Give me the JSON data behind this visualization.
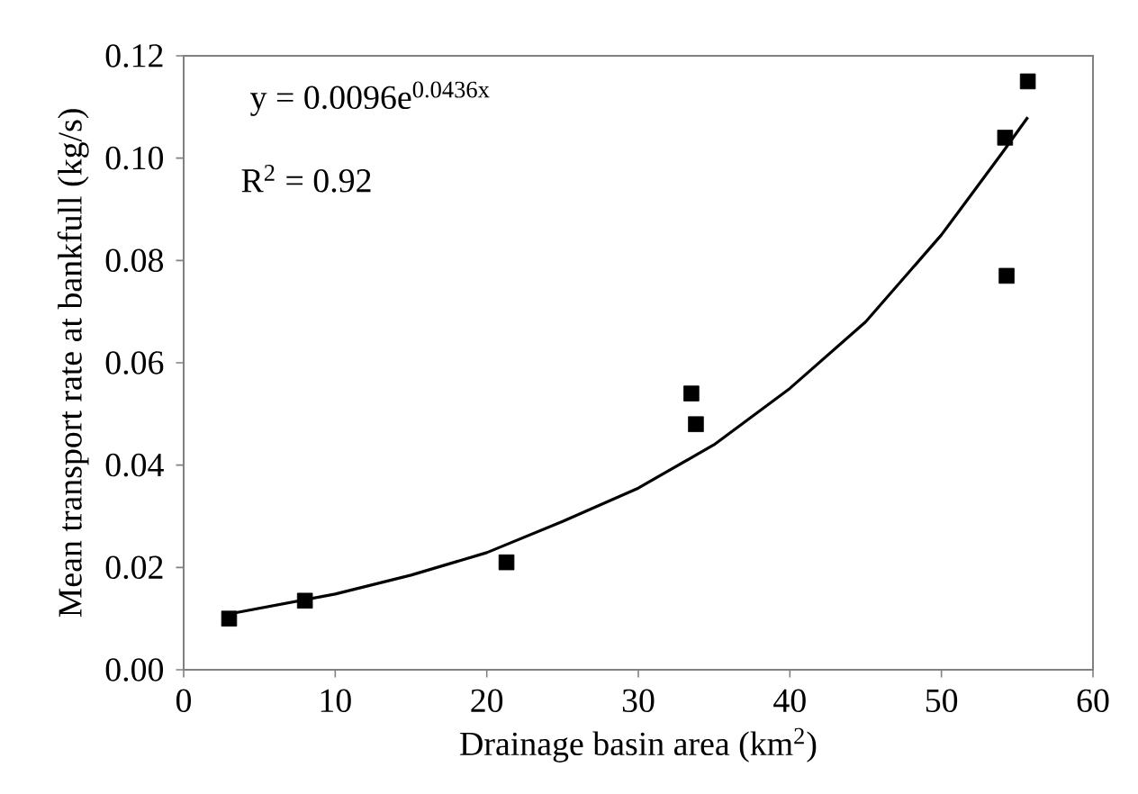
{
  "chart_data": {
    "type": "scatter",
    "xlabel": "Drainage basin area (km$^{2}$)",
    "ylabel": "Mean transport rate at bankfull (kg/s)",
    "annotations": [
      "y = 0.0096e$^{0.0436x}$",
      "R$^{2}$ = 0.92"
    ],
    "series": [
      {
        "color": "#000000",
        "marker": "square",
        "x": [
          3,
          8,
          21.3,
          33.5,
          33.8,
          54.2,
          54.3,
          55.7
        ],
        "values": [
          0.01,
          0.0135,
          0.021,
          0.054,
          0.048,
          0.104,
          0.077,
          0.115
        ]
      },
      {
        "type": "line",
        "color": "#000000",
        "marker": "none",
        "x": [
          3,
          10,
          15,
          20,
          25,
          30,
          35,
          40,
          45,
          50,
          52,
          54,
          55.7
        ],
        "values": [
          0.0109,
          0.0148,
          0.0185,
          0.0229,
          0.029,
          0.0355,
          0.044,
          0.055,
          0.068,
          0.085,
          0.093,
          0.101,
          0.108
        ]
      }
    ],
    "xlim": [
      0,
      60
    ],
    "ylim": [
      0,
      0.12
    ],
    "xticks": [
      0,
      10,
      20,
      30,
      40,
      50,
      60
    ],
    "yticks": [
      {
        "value": 0,
        "label": "0.00"
      },
      {
        "value": 0.02,
        "label": "0.02"
      },
      {
        "value": 0.04,
        "label": "0.04"
      },
      {
        "value": 0.06,
        "label": "0.06"
      },
      {
        "value": 0.08,
        "label": "0.08"
      },
      {
        "value": 0.1,
        "label": "0.10"
      },
      {
        "value": 0.12,
        "label": "0.12"
      }
    ],
    "grid": false
  }
}
